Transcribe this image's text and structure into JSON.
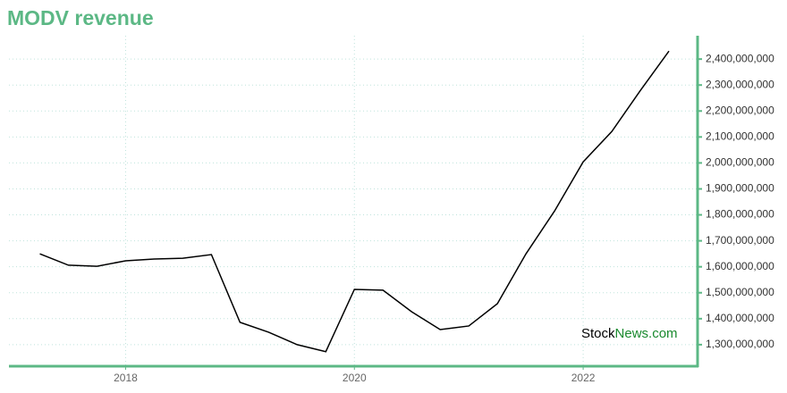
{
  "chart_data": {
    "type": "line",
    "title": "MODV revenue",
    "x": [
      2017.25,
      2017.5,
      2017.75,
      2018.0,
      2018.25,
      2018.5,
      2018.75,
      2019.0,
      2019.25,
      2019.5,
      2019.75,
      2020.0,
      2020.25,
      2020.5,
      2020.75,
      2021.0,
      2021.25,
      2021.5,
      2021.75,
      2022.0,
      2022.25,
      2022.5,
      2022.75
    ],
    "values": [
      1650000000,
      1606000000,
      1602000000,
      1623000000,
      1630000000,
      1633000000,
      1647000000,
      1386000000,
      1348000000,
      1300000000,
      1273000000,
      1513000000,
      1510000000,
      1427000000,
      1358000000,
      1372000000,
      1458000000,
      1650000000,
      1815000000,
      2004000000,
      2121000000,
      2279000000,
      2431000000
    ],
    "color": "#000000",
    "xlim": [
      2016.98,
      2023.0
    ],
    "xticks": [
      2018,
      2020,
      2022
    ],
    "ylim": [
      1217000000,
      2490000000
    ],
    "yticks": [
      {
        "value": 1300000000,
        "label": "1,300,000,000"
      },
      {
        "value": 1400000000,
        "label": "1,400,000,000"
      },
      {
        "value": 1500000000,
        "label": "1,500,000,000"
      },
      {
        "value": 1600000000,
        "label": "1,600,000,000"
      },
      {
        "value": 1700000000,
        "label": "1,700,000,000"
      },
      {
        "value": 1800000000,
        "label": "1,800,000,000"
      },
      {
        "value": 1900000000,
        "label": "1,900,000,000"
      },
      {
        "value": 2000000000,
        "label": "2,000,000,000"
      },
      {
        "value": 2100000000,
        "label": "2,100,000,000"
      },
      {
        "value": 2200000000,
        "label": "2,200,000,000"
      },
      {
        "value": 2300000000,
        "label": "2,300,000,000"
      },
      {
        "value": 2400000000,
        "label": "2,400,000,000"
      }
    ],
    "grid": true,
    "axis_color": "#5cb885",
    "watermark": [
      "Stock",
      "News.com"
    ]
  }
}
